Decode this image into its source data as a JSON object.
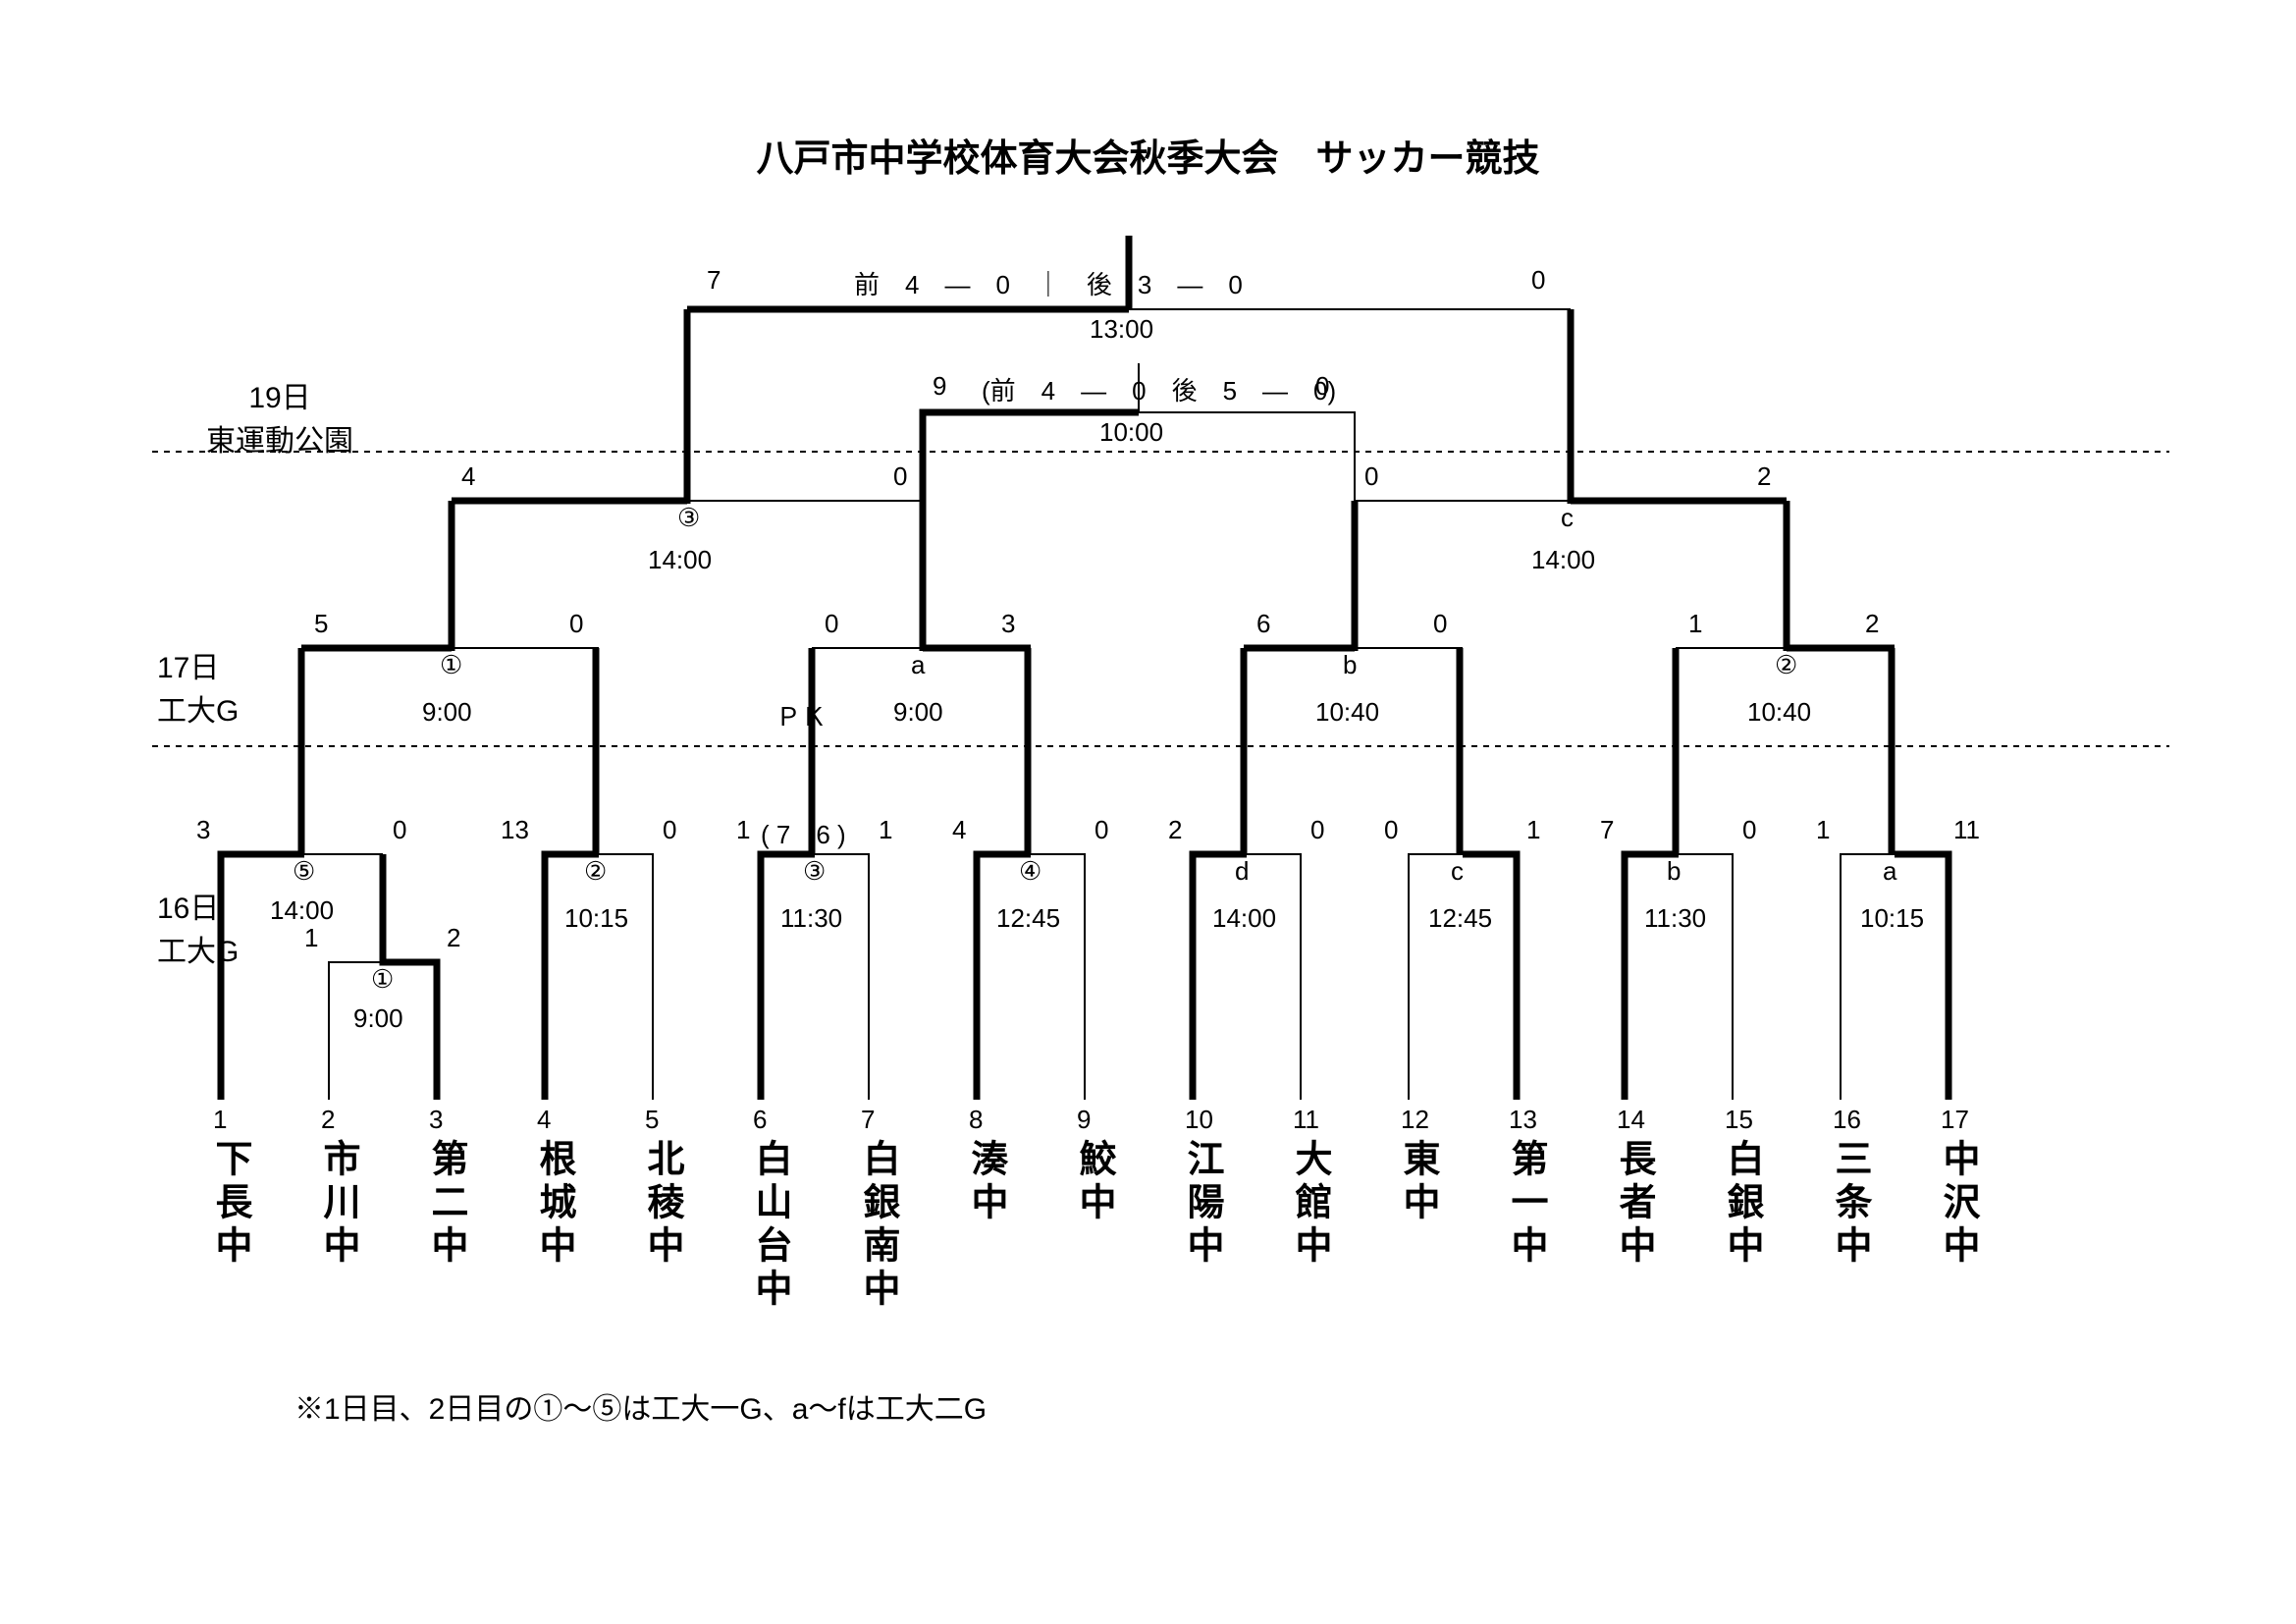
{
  "title": "八戸市中学校体育大会秋季大会　サッカー競技",
  "title_fontsize": 38,
  "footnote": "※1日目、2日目の①～⑤は工大一G、a～fは工大二G",
  "footnote_fontsize": 30,
  "label_fontsize": 30,
  "score_fontsize": 26,
  "team_fontsize": 38,
  "seed_fontsize": 26,
  "day_labels": {
    "d19": {
      "line1": "19日",
      "line2": "東運動公園"
    },
    "d17": {
      "line1": "17日",
      "line2": "工大G"
    },
    "d16": {
      "line1": "16日",
      "line2": "工大G"
    }
  },
  "teams": [
    {
      "seed": "1",
      "name": "下長中"
    },
    {
      "seed": "2",
      "name": "市川中"
    },
    {
      "seed": "3",
      "name": "第二中"
    },
    {
      "seed": "4",
      "name": "根城中"
    },
    {
      "seed": "5",
      "name": "北稜中"
    },
    {
      "seed": "6",
      "name": "白山台中"
    },
    {
      "seed": "7",
      "name": "白銀南中"
    },
    {
      "seed": "8",
      "name": "湊中"
    },
    {
      "seed": "9",
      "name": "鮫中"
    },
    {
      "seed": "10",
      "name": "江陽中"
    },
    {
      "seed": "11",
      "name": "大館中"
    },
    {
      "seed": "12",
      "name": "東中"
    },
    {
      "seed": "13",
      "name": "第一中"
    },
    {
      "seed": "14",
      "name": "長者中"
    },
    {
      "seed": "15",
      "name": "白銀中"
    },
    {
      "seed": "16",
      "name": "三条中"
    },
    {
      "seed": "17",
      "name": "中沢中"
    }
  ],
  "final": {
    "score_l": "7",
    "score_r": "0",
    "half": "前　4　―　0　｜　後　3　―　0",
    "time": "13:00"
  },
  "third": {
    "score_l": "9",
    "half": "(前　4　―　0　後　5　―　0)",
    "score_r": "0",
    "time": "10:00"
  },
  "sf_l": {
    "label": "③",
    "time": "14:00",
    "score_l": "4",
    "score_r": "0"
  },
  "sf_r": {
    "label": "c",
    "time": "14:00",
    "score_l": "0",
    "score_r": "2"
  },
  "qf": {
    "q1": {
      "label": "①",
      "time": "9:00",
      "score_l": "5",
      "score_r": "0"
    },
    "q2": {
      "label": "a",
      "time": "9:00",
      "score_l": "0",
      "score_r": "3",
      "pk_label": "ＰＫ"
    },
    "q3": {
      "label": "b",
      "time": "10:40",
      "score_l": "6",
      "score_r": "0"
    },
    "q4": {
      "label": "②",
      "time": "10:40",
      "score_l": "1",
      "score_r": "2"
    }
  },
  "r1": {
    "m05": {
      "label": "⑤",
      "time": "14:00",
      "score_l": "3",
      "score_r": "0"
    },
    "m01": {
      "label": "①",
      "time": "9:00",
      "score_l": "1",
      "score_r": "2"
    },
    "m02": {
      "label": "②",
      "time": "10:15",
      "score_l": "13",
      "score_r": "0"
    },
    "m03": {
      "label": "③",
      "time": "11:30",
      "score_l": "1",
      "score_r": "1",
      "pk": "( 7　6 )"
    },
    "m04": {
      "label": "④",
      "time": "12:45",
      "score_l": "4",
      "score_r": "0"
    },
    "md": {
      "label": "d",
      "time": "14:00",
      "score_l": "2",
      "score_r": "0"
    },
    "mc": {
      "label": "c",
      "time": "12:45",
      "score_l": "0",
      "score_r": "1"
    },
    "mb": {
      "label": "b",
      "time": "11:30",
      "score_l": "7",
      "score_r": "0"
    },
    "ma": {
      "label": "a",
      "time": "10:15",
      "score_l": "1",
      "score_r": "11"
    }
  },
  "colors": {
    "line": "#000000",
    "background": "#ffffff"
  },
  "line_width_thin": 2,
  "line_width_thick": 7
}
